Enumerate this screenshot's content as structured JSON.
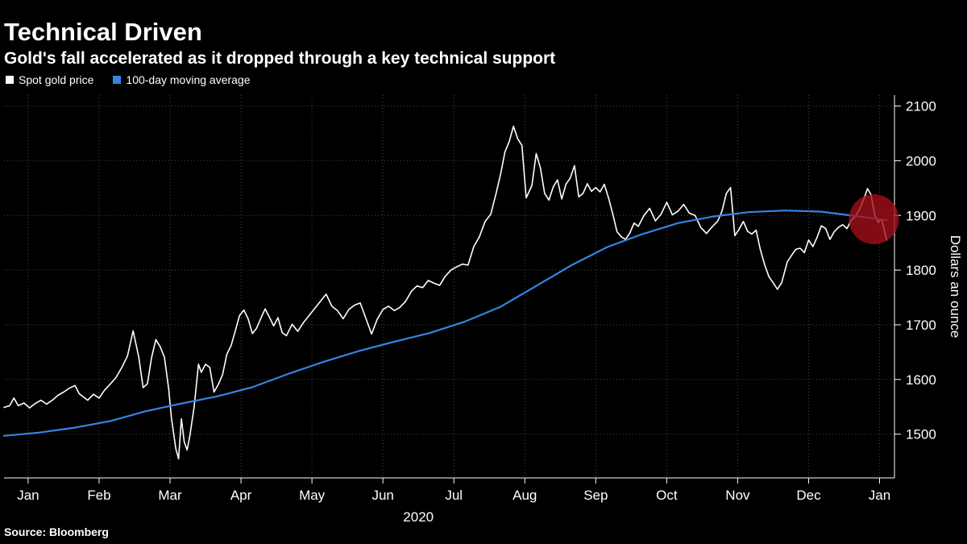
{
  "header": {
    "title": "Technical Driven",
    "subtitle": "Gold's fall accelerated as it dropped through a key technical support"
  },
  "legend": [
    {
      "label": "Spot gold price",
      "color": "#ffffff"
    },
    {
      "label": "100-day moving average",
      "color": "#3584e4"
    }
  ],
  "source": "Source: Bloomberg",
  "chart_data": {
    "type": "line",
    "title": "Technical Driven",
    "subtitle": "Gold's fall accelerated as it dropped through a key technical support",
    "grid": "dotted",
    "legend_position": "top-left",
    "x_axis": {
      "tick_labels": [
        "Jan",
        "Feb",
        "Mar",
        "Apr",
        "May",
        "Jun",
        "Jul",
        "Aug",
        "Sep",
        "Oct",
        "Nov",
        "Dec",
        "Jan"
      ],
      "tick_positions": [
        0.34,
        1.34,
        2.34,
        3.34,
        4.34,
        5.34,
        6.34,
        7.34,
        8.34,
        9.34,
        10.34,
        11.34,
        12.34
      ],
      "year_label": "2020",
      "xlim": [
        0,
        12.55
      ],
      "unit": "months since Jan 2020"
    },
    "y_axis": {
      "title": "Dollars an ounce",
      "ticks": [
        1500,
        1600,
        1700,
        1800,
        1900,
        2000,
        2100
      ],
      "ylim": [
        1420,
        2120
      ],
      "side": "right"
    },
    "series": [
      {
        "name": "Spot gold price",
        "color": "#ffffff",
        "width": 1.6,
        "points": [
          [
            0.0,
            1549
          ],
          [
            0.08,
            1552
          ],
          [
            0.14,
            1566
          ],
          [
            0.2,
            1552
          ],
          [
            0.28,
            1557
          ],
          [
            0.36,
            1548
          ],
          [
            0.44,
            1556
          ],
          [
            0.52,
            1562
          ],
          [
            0.6,
            1555
          ],
          [
            0.68,
            1562
          ],
          [
            0.76,
            1571
          ],
          [
            0.84,
            1577
          ],
          [
            0.92,
            1584
          ],
          [
            1.0,
            1589
          ],
          [
            1.06,
            1574
          ],
          [
            1.12,
            1568
          ],
          [
            1.18,
            1562
          ],
          [
            1.26,
            1573
          ],
          [
            1.34,
            1566
          ],
          [
            1.42,
            1581
          ],
          [
            1.5,
            1592
          ],
          [
            1.58,
            1604
          ],
          [
            1.66,
            1622
          ],
          [
            1.74,
            1643
          ],
          [
            1.82,
            1689
          ],
          [
            1.9,
            1640
          ],
          [
            1.96,
            1585
          ],
          [
            2.02,
            1592
          ],
          [
            2.08,
            1640
          ],
          [
            2.14,
            1673
          ],
          [
            2.2,
            1660
          ],
          [
            2.26,
            1641
          ],
          [
            2.32,
            1583
          ],
          [
            2.36,
            1529
          ],
          [
            2.42,
            1474
          ],
          [
            2.46,
            1455
          ],
          [
            2.5,
            1528
          ],
          [
            2.54,
            1486
          ],
          [
            2.58,
            1471
          ],
          [
            2.62,
            1498
          ],
          [
            2.68,
            1551
          ],
          [
            2.74,
            1628
          ],
          [
            2.78,
            1613
          ],
          [
            2.84,
            1628
          ],
          [
            2.9,
            1622
          ],
          [
            2.96,
            1577
          ],
          [
            3.02,
            1591
          ],
          [
            3.08,
            1609
          ],
          [
            3.14,
            1646
          ],
          [
            3.2,
            1662
          ],
          [
            3.26,
            1689
          ],
          [
            3.32,
            1717
          ],
          [
            3.38,
            1727
          ],
          [
            3.44,
            1711
          ],
          [
            3.5,
            1684
          ],
          [
            3.56,
            1694
          ],
          [
            3.62,
            1712
          ],
          [
            3.68,
            1729
          ],
          [
            3.74,
            1714
          ],
          [
            3.8,
            1698
          ],
          [
            3.86,
            1713
          ],
          [
            3.92,
            1686
          ],
          [
            3.98,
            1680
          ],
          [
            4.06,
            1701
          ],
          [
            4.14,
            1688
          ],
          [
            4.22,
            1704
          ],
          [
            4.3,
            1717
          ],
          [
            4.38,
            1730
          ],
          [
            4.46,
            1743
          ],
          [
            4.54,
            1756
          ],
          [
            4.62,
            1734
          ],
          [
            4.7,
            1726
          ],
          [
            4.78,
            1711
          ],
          [
            4.86,
            1728
          ],
          [
            4.94,
            1736
          ],
          [
            5.02,
            1740
          ],
          [
            5.1,
            1712
          ],
          [
            5.18,
            1683
          ],
          [
            5.26,
            1710
          ],
          [
            5.34,
            1728
          ],
          [
            5.42,
            1734
          ],
          [
            5.5,
            1726
          ],
          [
            5.58,
            1732
          ],
          [
            5.66,
            1743
          ],
          [
            5.74,
            1761
          ],
          [
            5.82,
            1771
          ],
          [
            5.9,
            1768
          ],
          [
            5.98,
            1781
          ],
          [
            6.06,
            1776
          ],
          [
            6.14,
            1772
          ],
          [
            6.22,
            1789
          ],
          [
            6.3,
            1800
          ],
          [
            6.38,
            1806
          ],
          [
            6.46,
            1811
          ],
          [
            6.54,
            1809
          ],
          [
            6.62,
            1843
          ],
          [
            6.7,
            1861
          ],
          [
            6.78,
            1889
          ],
          [
            6.86,
            1902
          ],
          [
            6.94,
            1943
          ],
          [
            7.0,
            1976
          ],
          [
            7.06,
            2016
          ],
          [
            7.12,
            2035
          ],
          [
            7.18,
            2063
          ],
          [
            7.24,
            2040
          ],
          [
            7.3,
            2028
          ],
          [
            7.36,
            1932
          ],
          [
            7.44,
            1955
          ],
          [
            7.5,
            2013
          ],
          [
            7.56,
            1987
          ],
          [
            7.62,
            1940
          ],
          [
            7.68,
            1928
          ],
          [
            7.74,
            1952
          ],
          [
            7.8,
            1965
          ],
          [
            7.86,
            1930
          ],
          [
            7.92,
            1957
          ],
          [
            7.98,
            1968
          ],
          [
            8.04,
            1991
          ],
          [
            8.1,
            1934
          ],
          [
            8.16,
            1940
          ],
          [
            8.22,
            1958
          ],
          [
            8.28,
            1944
          ],
          [
            8.34,
            1951
          ],
          [
            8.4,
            1943
          ],
          [
            8.46,
            1957
          ],
          [
            8.52,
            1932
          ],
          [
            8.58,
            1902
          ],
          [
            8.64,
            1870
          ],
          [
            8.7,
            1861
          ],
          [
            8.76,
            1856
          ],
          [
            8.82,
            1868
          ],
          [
            8.88,
            1886
          ],
          [
            8.94,
            1880
          ],
          [
            9.02,
            1900
          ],
          [
            9.1,
            1913
          ],
          [
            9.18,
            1890
          ],
          [
            9.26,
            1902
          ],
          [
            9.34,
            1924
          ],
          [
            9.42,
            1901
          ],
          [
            9.5,
            1908
          ],
          [
            9.58,
            1920
          ],
          [
            9.66,
            1904
          ],
          [
            9.74,
            1900
          ],
          [
            9.82,
            1878
          ],
          [
            9.9,
            1867
          ],
          [
            9.98,
            1879
          ],
          [
            10.06,
            1890
          ],
          [
            10.12,
            1908
          ],
          [
            10.18,
            1940
          ],
          [
            10.24,
            1951
          ],
          [
            10.3,
            1863
          ],
          [
            10.36,
            1875
          ],
          [
            10.42,
            1889
          ],
          [
            10.48,
            1871
          ],
          [
            10.54,
            1866
          ],
          [
            10.6,
            1873
          ],
          [
            10.66,
            1837
          ],
          [
            10.72,
            1810
          ],
          [
            10.78,
            1788
          ],
          [
            10.84,
            1777
          ],
          [
            10.9,
            1765
          ],
          [
            10.96,
            1777
          ],
          [
            11.04,
            1815
          ],
          [
            11.1,
            1827
          ],
          [
            11.16,
            1838
          ],
          [
            11.22,
            1840
          ],
          [
            11.28,
            1832
          ],
          [
            11.34,
            1855
          ],
          [
            11.4,
            1843
          ],
          [
            11.46,
            1860
          ],
          [
            11.52,
            1881
          ],
          [
            11.58,
            1876
          ],
          [
            11.64,
            1856
          ],
          [
            11.7,
            1870
          ],
          [
            11.76,
            1878
          ],
          [
            11.82,
            1883
          ],
          [
            11.88,
            1876
          ],
          [
            11.94,
            1891
          ],
          [
            12.0,
            1898
          ],
          [
            12.06,
            1912
          ],
          [
            12.12,
            1930
          ],
          [
            12.17,
            1949
          ],
          [
            12.22,
            1938
          ],
          [
            12.27,
            1902
          ],
          [
            12.32,
            1887
          ],
          [
            12.37,
            1893
          ],
          [
            12.44,
            1855
          ]
        ]
      },
      {
        "name": "100-day moving average",
        "color": "#3584e4",
        "width": 2.2,
        "points": [
          [
            0.0,
            1497
          ],
          [
            0.5,
            1503
          ],
          [
            1.0,
            1512
          ],
          [
            1.5,
            1524
          ],
          [
            2.0,
            1542
          ],
          [
            2.5,
            1556
          ],
          [
            3.0,
            1569
          ],
          [
            3.5,
            1586
          ],
          [
            4.0,
            1610
          ],
          [
            4.5,
            1632
          ],
          [
            5.0,
            1652
          ],
          [
            5.5,
            1669
          ],
          [
            6.0,
            1685
          ],
          [
            6.5,
            1706
          ],
          [
            7.0,
            1733
          ],
          [
            7.5,
            1771
          ],
          [
            8.0,
            1809
          ],
          [
            8.5,
            1842
          ],
          [
            9.0,
            1866
          ],
          [
            9.5,
            1886
          ],
          [
            10.0,
            1898
          ],
          [
            10.5,
            1906
          ],
          [
            11.0,
            1909
          ],
          [
            11.5,
            1907
          ],
          [
            12.0,
            1899
          ],
          [
            12.45,
            1891
          ]
        ]
      }
    ],
    "annotation": {
      "type": "circle",
      "x": 12.26,
      "y": 1893,
      "radius_px": 31,
      "color": "#a50f1a",
      "opacity": 0.78,
      "meaning": "highlights gold dropping through the 100-day moving average"
    }
  }
}
